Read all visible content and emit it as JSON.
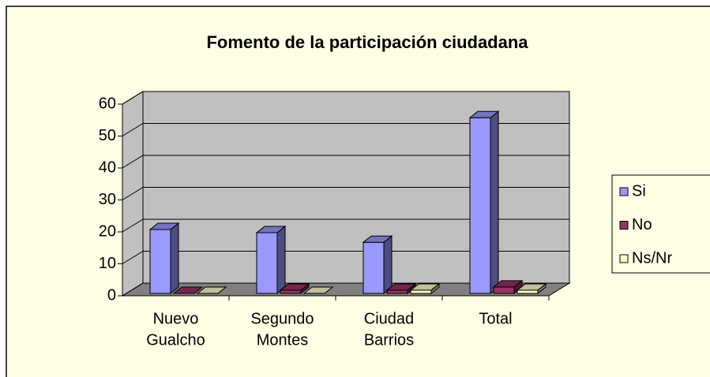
{
  "chart_data": {
    "type": "bar3d",
    "title": "Fomento de la participación ciudadana",
    "categories": [
      [
        "Nuevo",
        "Gualcho"
      ],
      [
        "Segundo",
        "Montes"
      ],
      [
        "Ciudad",
        "Barrios"
      ],
      [
        "Total"
      ]
    ],
    "series": [
      {
        "name": "Si",
        "color": "#9999ff",
        "values": [
          20,
          19,
          16,
          55
        ]
      },
      {
        "name": "No",
        "color": "#993366",
        "values": [
          0,
          1,
          1,
          2
        ]
      },
      {
        "name": "Ns/Nr",
        "color": "#ffffcc",
        "values": [
          0,
          0,
          1,
          1
        ]
      }
    ],
    "ylim": [
      0,
      60
    ],
    "yticks": [
      0,
      10,
      20,
      30,
      40,
      50,
      60
    ],
    "grid": true,
    "legend": "right"
  }
}
